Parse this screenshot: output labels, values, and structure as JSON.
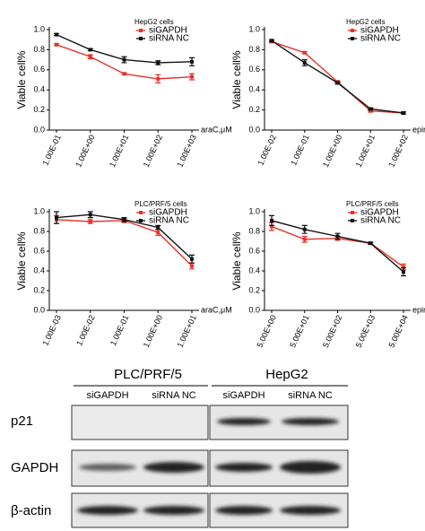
{
  "chart_data": [
    {
      "type": "line",
      "legend_title": "HepG2 cells",
      "ylabel": "Viable cell%",
      "xlabel": "araC,μM",
      "categories": [
        "1.00E-01",
        "1.00E+00",
        "1.00E+01",
        "1.00E+02",
        "1.00E+03"
      ],
      "ylim": [
        0,
        1
      ],
      "yticks": [
        {
          "value": 0,
          "label": "0.0"
        },
        0.2,
        0.4,
        0.6,
        0.8,
        {
          "value": 1,
          "label": "1.0"
        }
      ],
      "series": [
        {
          "name": "siGAPDH",
          "color": "#e8312a",
          "values": [
            0.85,
            0.73,
            0.56,
            0.51,
            0.53
          ],
          "errors": [
            0.01,
            0.02,
            0.01,
            0.04,
            0.03
          ]
        },
        {
          "name": "siRNA NC",
          "color": "#111111",
          "values": [
            0.95,
            0.8,
            0.7,
            0.67,
            0.68
          ],
          "errors": [
            0.01,
            0.01,
            0.03,
            0.02,
            0.04
          ]
        }
      ]
    },
    {
      "type": "line",
      "legend_title": "HepG2 cells",
      "ylabel": "Viable cell%",
      "xlabel": "epirubicin,μM",
      "categories": [
        "1.00E-02",
        "1.00E-01",
        "1.00E+00",
        "1.00E+01",
        "1.00E+02"
      ],
      "ylim": [
        0,
        1
      ],
      "yticks": [
        {
          "value": 0,
          "label": "0.0"
        },
        0.2,
        0.4,
        0.6,
        0.8,
        {
          "value": 1,
          "label": "1.0"
        }
      ],
      "series": [
        {
          "name": "siGAPDH",
          "color": "#e8312a",
          "values": [
            0.88,
            0.77,
            0.48,
            0.19,
            0.17
          ],
          "errors": [
            0.01,
            0.01,
            0.01,
            0.01,
            0.01
          ]
        },
        {
          "name": "siRNA NC",
          "color": "#111111",
          "values": [
            0.89,
            0.67,
            0.47,
            0.21,
            0.17
          ],
          "errors": [
            0.01,
            0.03,
            0.01,
            0.01,
            0.01
          ]
        }
      ]
    },
    {
      "type": "line",
      "legend_title": "PLC/PRF/5 cells",
      "ylabel": "Viable cell%",
      "xlabel": "araC,μM",
      "categories": [
        "1.00E-03",
        "1.00E-02",
        "1.00E-01",
        "1.00E+00",
        "1.00E+01"
      ],
      "ylim": [
        0,
        1
      ],
      "yticks": [
        {
          "value": 0,
          "label": "0.0"
        },
        0.2,
        0.4,
        0.6,
        0.8,
        {
          "value": 1,
          "label": "1.0"
        }
      ],
      "series": [
        {
          "name": "siGAPDH",
          "color": "#e8312a",
          "values": [
            0.92,
            0.9,
            0.91,
            0.79,
            0.45
          ],
          "errors": [
            0.04,
            0.02,
            0.02,
            0.03,
            0.03
          ]
        },
        {
          "name": "siRNA NC",
          "color": "#111111",
          "values": [
            0.94,
            0.97,
            0.92,
            0.84,
            0.52
          ],
          "errors": [
            0.06,
            0.03,
            0.02,
            0.02,
            0.04
          ]
        }
      ]
    },
    {
      "type": "line",
      "legend_title": "PLC/PRF/5 cells",
      "ylabel": "Viable cell%",
      "xlabel": "epirubicin,μM",
      "categories": [
        "5.00E+00",
        "5.00E+01",
        "5.00E+02",
        "5.00E+03",
        "5.00E+04"
      ],
      "ylim": [
        0,
        1
      ],
      "yticks": [
        {
          "value": 0,
          "label": "0.0"
        },
        0.2,
        0.4,
        0.6,
        0.8,
        {
          "value": 1,
          "label": "1.0"
        }
      ],
      "series": [
        {
          "name": "siGAPDH",
          "color": "#e8312a",
          "values": [
            0.85,
            0.72,
            0.73,
            0.68,
            0.44
          ],
          "errors": [
            0.04,
            0.03,
            0.02,
            0.01,
            0.03
          ]
        },
        {
          "name": "siRNA NC",
          "color": "#111111",
          "values": [
            0.91,
            0.82,
            0.75,
            0.68,
            0.39
          ],
          "errors": [
            0.05,
            0.04,
            0.03,
            0.01,
            0.04
          ]
        }
      ]
    }
  ],
  "blot": {
    "groups": [
      "PLC/PRF/5",
      "HepG2"
    ],
    "lanes": [
      "siGAPDH",
      "siRNA NC",
      "siGAPDH",
      "siRNA NC"
    ],
    "rows": [
      "p21",
      "GAPDH",
      "β-actin"
    ]
  }
}
